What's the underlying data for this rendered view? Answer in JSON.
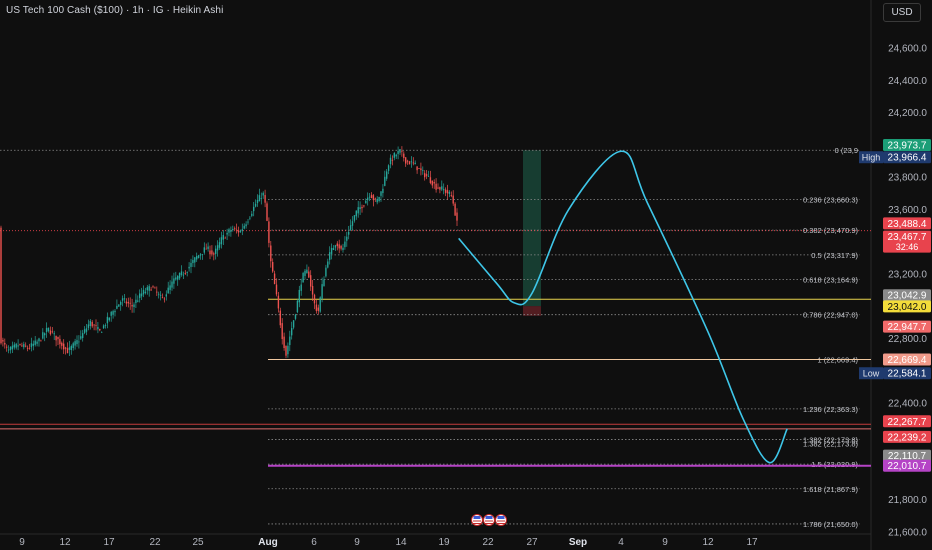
{
  "header": {
    "title": "US Tech 100 Cash ($100) · 1h · IG · Heikin Ashi",
    "currency": "USD"
  },
  "colors": {
    "background": "#0f0f0f",
    "up": "#26a69a",
    "down": "#ef5350",
    "projection": "#3ec6e8",
    "yellow_line": "#e8d44d",
    "red_line": "#c43b3b",
    "purple_line": "#b544c6"
  },
  "chart_data": {
    "type": "candlestick",
    "style": "Heikin Ashi",
    "timeframe": "1h",
    "y_range": [
      21550,
      24800
    ],
    "y_ticks": [
      {
        "value": 24600,
        "label": "24,600.0"
      },
      {
        "value": 24400,
        "label": "24,400.0"
      },
      {
        "value": 24200,
        "label": "24,200.0"
      },
      {
        "value": 23800,
        "label": "23,800.0"
      },
      {
        "value": 23600,
        "label": "23,600.0"
      },
      {
        "value": 23200,
        "label": "23,200.0"
      },
      {
        "value": 22800,
        "label": "22,800.0"
      },
      {
        "value": 22400,
        "label": "22,400.0"
      },
      {
        "value": 21800,
        "label": "21,800.0"
      },
      {
        "value": 21600,
        "label": "21,600.0"
      }
    ],
    "x_ticks": [
      {
        "label": "9",
        "bold": false
      },
      {
        "label": "12",
        "bold": false
      },
      {
        "label": "17",
        "bold": false
      },
      {
        "label": "22",
        "bold": false
      },
      {
        "label": "25",
        "bold": false
      },
      {
        "label": "Aug",
        "bold": true
      },
      {
        "label": "6",
        "bold": false
      },
      {
        "label": "9",
        "bold": false
      },
      {
        "label": "14",
        "bold": false
      },
      {
        "label": "19",
        "bold": false
      },
      {
        "label": "22",
        "bold": false
      },
      {
        "label": "27",
        "bold": false
      },
      {
        "label": "Sep",
        "bold": true
      },
      {
        "label": "4",
        "bold": false
      },
      {
        "label": "9",
        "bold": false
      },
      {
        "label": "12",
        "bold": false
      },
      {
        "label": "17",
        "bold": false
      }
    ],
    "fib_levels": [
      {
        "ratio": "0",
        "value": 23966.4,
        "label": "0 (23,9"
      },
      {
        "ratio": "0.236",
        "value": 23660.3,
        "label": "0.236 (23,660.3)"
      },
      {
        "ratio": "0.382",
        "value": 23470.9,
        "label": "0.382 (23,470.9)"
      },
      {
        "ratio": "0.5",
        "value": 23317.9,
        "label": "0.5 (23,317.9)"
      },
      {
        "ratio": "0.618",
        "value": 23164.9,
        "label": "0.618 (23,164.9)"
      },
      {
        "ratio": "0.786",
        "value": 22947.0,
        "label": "0.786 (22,947.0)"
      },
      {
        "ratio": "1",
        "value": 22669.4,
        "label": "1 (22,669.4)"
      },
      {
        "ratio": "1.236",
        "value": 22363.3,
        "label": "1.236 (22,363.3)"
      },
      {
        "ratio": "1.382",
        "value": 22173.8,
        "label": "1.382 (22,173.8)"
      },
      {
        "ratio": "1.5",
        "value": 22020.9,
        "label": "1.5 (22,020.9)"
      },
      {
        "ratio": "1.618",
        "value": 21867.9,
        "label": "1.618 (21,867.9)"
      },
      {
        "ratio": "1.786",
        "value": 21650.0,
        "label": "1.786 (21,650.0)"
      }
    ],
    "overlap_label": "1.382 (22,173.8)",
    "price_badges": [
      {
        "value": 23973.7,
        "label": "23,973.7",
        "bg": "#1b9e77",
        "fg": "#ffffff"
      },
      {
        "value": 23966.4,
        "label": "23,966.4",
        "bg": "#1f3a6e",
        "fg": "#ffffff",
        "tag": "High"
      },
      {
        "value": 23488.4,
        "label": "23,488.4",
        "bg": "#e8434d",
        "fg": "#ffffff"
      },
      {
        "value": 23467.7,
        "label": "23,467.7",
        "bg": "#e8434d",
        "fg": "#ffffff",
        "sub": "32:46"
      },
      {
        "value": 23042.9,
        "label": "23,042.9",
        "bg": "#8a8a8a",
        "fg": "#ffffff"
      },
      {
        "value": 23042.0,
        "label": "23,042.0",
        "bg": "#f2dc3a",
        "fg": "#111111"
      },
      {
        "value": 22947.7,
        "label": "22,947.7",
        "bg": "#f06a6a",
        "fg": "#ffffff"
      },
      {
        "value": 22669.4,
        "label": "22,669.4",
        "bg": "#f09a8a",
        "fg": "#ffffff"
      },
      {
        "value": 22584.1,
        "label": "22,584.1",
        "bg": "#1f3a6e",
        "fg": "#ffffff",
        "tag": "Low"
      },
      {
        "value": 22267.7,
        "label": "22,267.7",
        "bg": "#e8434d",
        "fg": "#ffffff"
      },
      {
        "value": 22239.2,
        "label": "22,239.2",
        "bg": "#e8434d",
        "fg": "#ffffff"
      },
      {
        "value": 22110.7,
        "label": "22,110.7",
        "bg": "#8a8a8a",
        "fg": "#ffffff"
      },
      {
        "value": 22010.7,
        "label": "22,010.7",
        "bg": "#b544c6",
        "fg": "#ffffff"
      }
    ],
    "horizontal_lines": [
      {
        "value": 23042.9,
        "color": "#e8d44d",
        "from": "Aug 1"
      },
      {
        "value": 22669.4,
        "color": "#f0c8a0",
        "from": "Aug 1"
      },
      {
        "value": 22267.7,
        "color": "#c43b3b",
        "from": "start"
      },
      {
        "value": 22239.2,
        "color": "#e07070",
        "from": "start"
      },
      {
        "value": 22010.7,
        "color": "#b544c6",
        "from": "Aug 1"
      }
    ],
    "position_box": {
      "entry": 23000,
      "target": 23966,
      "stop": 22940,
      "time": "Aug 27"
    },
    "projection_path": [
      [
        23420,
        "Aug 20"
      ],
      [
        23140,
        "Aug 23"
      ],
      [
        23020,
        "Aug 25"
      ],
      [
        23080,
        "Aug 27"
      ],
      [
        23600,
        "Aug 31"
      ],
      [
        23960,
        "Sep 4"
      ],
      [
        23640,
        "Sep 7"
      ],
      [
        22840,
        "Sep 12"
      ],
      [
        22300,
        "Sep 16"
      ],
      [
        22030,
        "Sep 19"
      ],
      [
        22240,
        "Sep 21"
      ]
    ],
    "last_price": 23467.7,
    "countdown": "32:46"
  }
}
